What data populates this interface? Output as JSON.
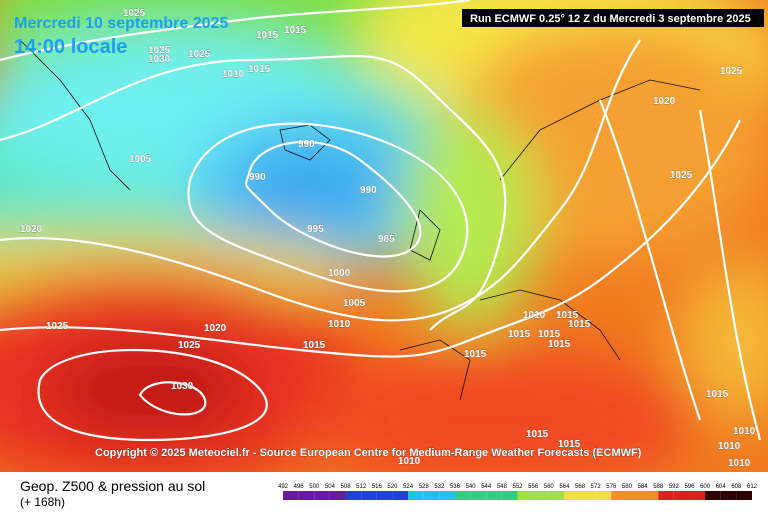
{
  "header": {
    "date": "Mercredi 10 septembre 2025",
    "time": "14:00 locale",
    "run": "Run ECMWF 0.25° 12 Z du Mercredi 3 septembre 2025"
  },
  "isobar_labels": [
    1025,
    1015,
    1015,
    1025,
    1030,
    1025,
    1010,
    1015,
    1005,
    990,
    990,
    990,
    995,
    985,
    1020,
    1000,
    1005,
    1010,
    1025,
    1020,
    1025,
    1015,
    1030,
    1025,
    1020,
    1025,
    1010,
    1015,
    1015,
    1015,
    1015,
    1015,
    1015,
    1015,
    1010,
    1015,
    1015,
    1010,
    1010,
    1010
  ],
  "copyright": "Copyright © 2025 Meteociel.fr - Source European Centre for Medium-Range Weather Forecasts (ECMWF)",
  "legend": {
    "title": "Geop. Z500 & pression au sol",
    "lead": "(+ 168h)",
    "scale": [
      492,
      496,
      500,
      504,
      508,
      512,
      516,
      520,
      524,
      528,
      532,
      536,
      540,
      544,
      548,
      552,
      556,
      560,
      564,
      568,
      572,
      576,
      580,
      584,
      588,
      592,
      596,
      600,
      604,
      608,
      612
    ]
  }
}
